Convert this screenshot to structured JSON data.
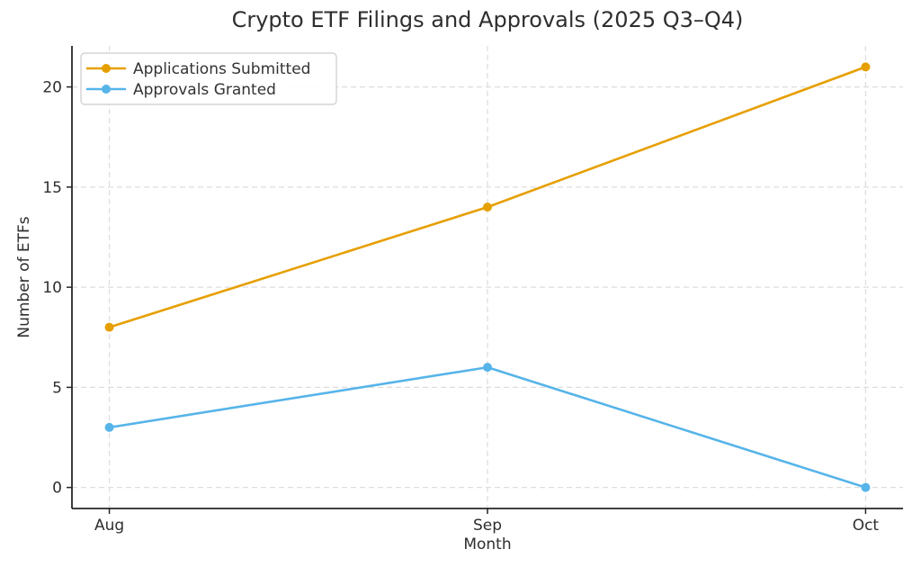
{
  "chart_data": {
    "type": "line",
    "title": "Crypto ETF Filings and Approvals (2025 Q3–Q4)",
    "xlabel": "Month",
    "ylabel": "Number of ETFs",
    "categories": [
      "Aug",
      "Sep",
      "Oct"
    ],
    "series": [
      {
        "name": "Applications Submitted",
        "values": [
          8,
          14,
          21
        ],
        "color": "#E69F00"
      },
      {
        "name": "Approvals Granted",
        "values": [
          3,
          6,
          0
        ],
        "color": "#56B4E9"
      }
    ],
    "yticks": [
      0,
      5,
      10,
      15,
      20
    ],
    "ylim": [
      -1.05,
      22.05
    ],
    "grid": "dashed",
    "legend_position": "top-left",
    "colors": {
      "grid": "#dddddd",
      "spine": "#262626",
      "tick_text": "#2e2e2e",
      "legend_text": "#333333",
      "legend_border": "#cccccc",
      "background": "#ffffff"
    }
  }
}
